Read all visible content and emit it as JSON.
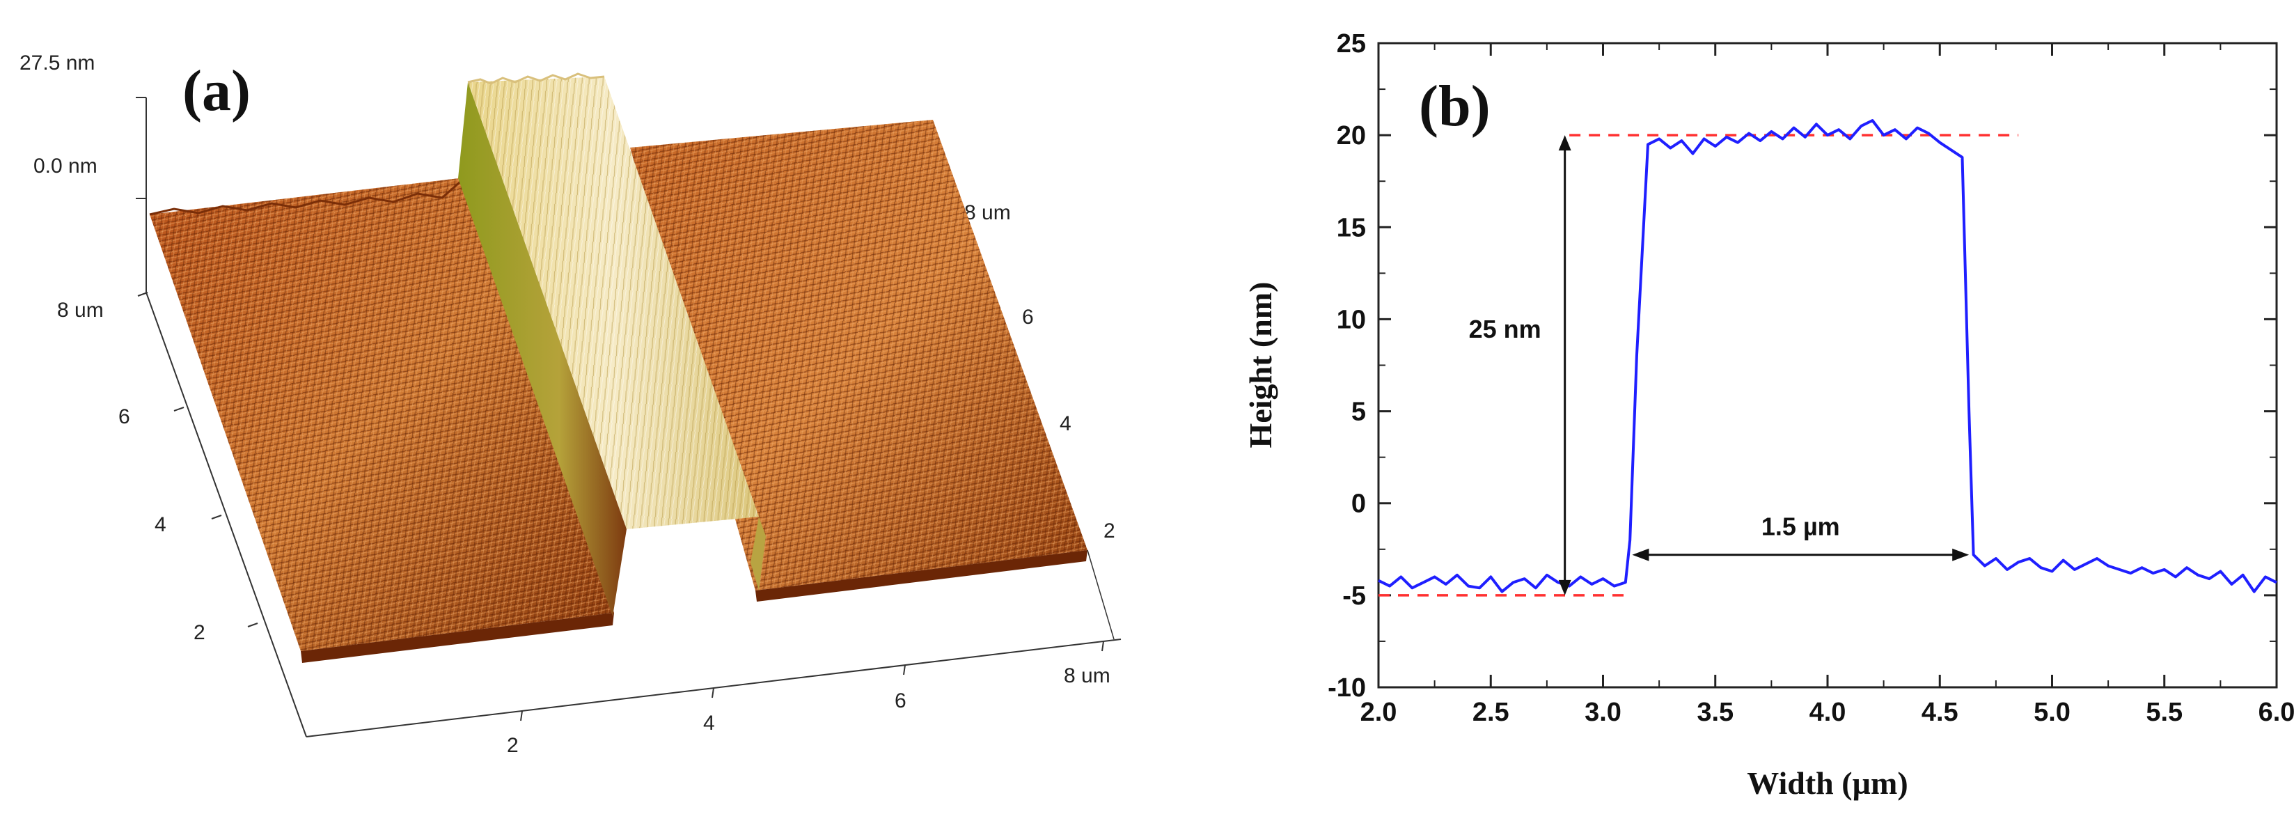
{
  "panel_a": {
    "label": "(a)",
    "z_ticks": [
      "27.5 nm",
      "0.0 nm"
    ],
    "y_ticks": [
      "8 um",
      "6",
      "4",
      "2"
    ],
    "x_ticks": [
      "2",
      "4",
      "6",
      "8 um"
    ],
    "right_ticks": [
      "8 um",
      "6",
      "4",
      "2"
    ],
    "colors": {
      "surface_dark": "#7a2e08",
      "surface_mid": "#c0601f",
      "surface_light": "#e39a4e",
      "stripe_top": "#f2e3ae",
      "stripe_wall": "#9aa12a"
    }
  },
  "chart_data": {
    "type": "line",
    "label": "(b)",
    "xlabel": "Width (µm)",
    "ylabel": "Height (nm)",
    "xlim": [
      2.0,
      6.0
    ],
    "ylim": [
      -10,
      25
    ],
    "x_ticks": [
      "2.0",
      "2.5",
      "3.0",
      "3.5",
      "4.0",
      "4.5",
      "5.0",
      "5.5",
      "6.0"
    ],
    "y_ticks": [
      "-10",
      "-5",
      "0",
      "5",
      "10",
      "15",
      "20",
      "25"
    ],
    "line_color": "#1f1fff",
    "ref_color": "#ff3030",
    "series": [
      {
        "x": [
          2.0,
          2.05,
          2.1,
          2.15,
          2.2,
          2.25,
          2.3,
          2.35,
          2.4,
          2.45,
          2.5,
          2.55,
          2.6,
          2.65,
          2.7,
          2.75,
          2.8,
          2.85,
          2.9,
          2.95,
          3.0,
          3.05,
          3.1,
          3.12,
          3.15,
          3.2,
          3.25,
          3.3,
          3.35,
          3.4,
          3.45,
          3.5,
          3.55,
          3.6,
          3.65,
          3.7,
          3.75,
          3.8,
          3.85,
          3.9,
          3.95,
          4.0,
          4.05,
          4.1,
          4.15,
          4.2,
          4.25,
          4.3,
          4.35,
          4.4,
          4.45,
          4.5,
          4.55,
          4.6,
          4.63,
          4.65,
          4.7,
          4.75,
          4.8,
          4.85,
          4.9,
          4.95,
          5.0,
          5.05,
          5.1,
          5.15,
          5.2,
          5.25,
          5.3,
          5.35,
          5.4,
          5.45,
          5.5,
          5.55,
          5.6,
          5.65,
          5.7,
          5.75,
          5.8,
          5.85,
          5.9,
          5.95,
          6.0
        ],
        "y": [
          -4.2,
          -4.5,
          -4.0,
          -4.6,
          -4.3,
          -4.0,
          -4.4,
          -3.9,
          -4.5,
          -4.6,
          -4.0,
          -4.8,
          -4.3,
          -4.1,
          -4.6,
          -3.9,
          -4.3,
          -4.5,
          -4.0,
          -4.4,
          -4.1,
          -4.5,
          -4.3,
          -2.0,
          8.0,
          19.5,
          19.8,
          19.3,
          19.7,
          19.0,
          19.8,
          19.4,
          19.9,
          19.6,
          20.1,
          19.7,
          20.2,
          19.8,
          20.4,
          19.9,
          20.6,
          20.0,
          20.3,
          19.8,
          20.5,
          20.8,
          20.0,
          20.3,
          19.8,
          20.4,
          20.1,
          19.6,
          19.2,
          18.8,
          5.0,
          -2.8,
          -3.4,
          -3.0,
          -3.6,
          -3.2,
          -3.0,
          -3.5,
          -3.7,
          -3.1,
          -3.6,
          -3.3,
          -3.0,
          -3.4,
          -3.6,
          -3.8,
          -3.5,
          -3.8,
          -3.6,
          -4.0,
          -3.5,
          -3.9,
          -4.1,
          -3.7,
          -4.4,
          -3.9,
          -4.8,
          -4.0,
          -4.3
        ]
      }
    ],
    "ref_lines": [
      {
        "y": 20,
        "x_from": 2.85,
        "x_to": 4.85
      },
      {
        "y": -5,
        "x_from": 2.0,
        "x_to": 3.1
      }
    ],
    "annotations": {
      "height_text": "25 nm",
      "height_arrow": {
        "x": 2.83,
        "y_from": -5,
        "y_to": 20
      },
      "width_text": "1.5 µm",
      "width_arrow": {
        "y": -2.8,
        "x_from": 3.13,
        "x_to": 4.63
      }
    }
  }
}
